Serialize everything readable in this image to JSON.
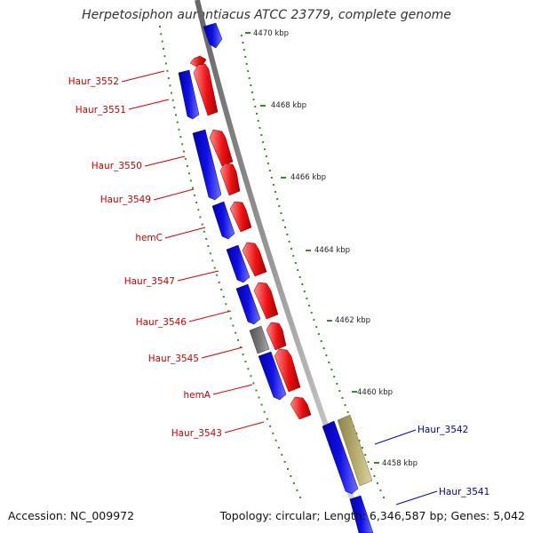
{
  "header": {
    "title": "Herpetosiphon aurantiacus ATCC 23779, complete genome"
  },
  "footer": {
    "accession": "Accession: NC_009972",
    "summary": "Topology: circular; Length: 6,346,587 bp; Genes: 5,042"
  },
  "colors": {
    "backbone": "#8a8a8a",
    "forward_cds": "#ee1111",
    "reverse_cds": "#1010e6",
    "other_feature": "#777777",
    "highlight_feature": "#b5aa6a",
    "ticks": "#3a8a2a",
    "label_forward": "#cc0000",
    "label_reverse": "#0000bb"
  },
  "ruler": {
    "ticks": [
      "4470 kbp",
      "4468 kbp",
      "4466 kbp",
      "4464 kbp",
      "4462 kbp",
      "4460 kbp",
      "4458 kbp"
    ]
  },
  "genes": {
    "left": [
      "Haur_3552",
      "Haur_3551",
      "Haur_3550",
      "Haur_3549",
      "hemC",
      "Haur_3547",
      "Haur_3546",
      "Haur_3545",
      "hemA",
      "Haur_3543"
    ],
    "right": [
      "Haur_3542",
      "Haur_3541"
    ]
  }
}
